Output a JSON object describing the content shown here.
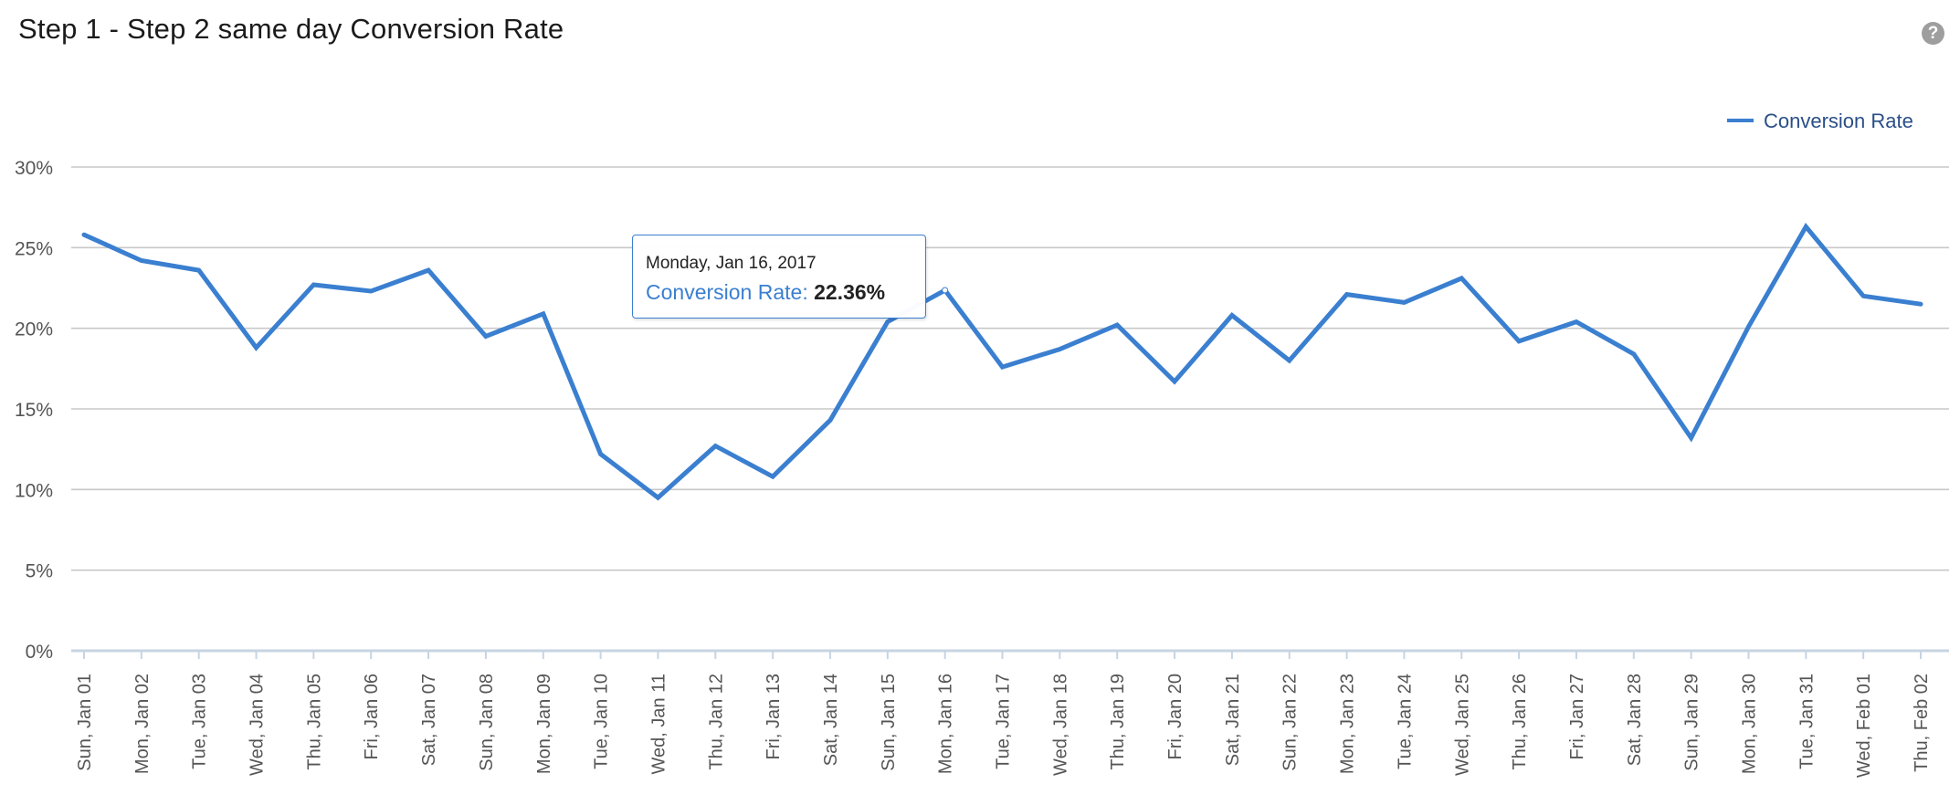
{
  "header": {
    "title": "Step 1 - Step 2 same day Conversion Rate",
    "help_icon": "?"
  },
  "colors": {
    "series": "#3a7fd0",
    "grid": "#c8c8c8",
    "axis_text": "#555555"
  },
  "tooltip": {
    "date": "Monday, Jan 16, 2017",
    "series": "Conversion Rate",
    "separator": ":",
    "value": "22.36%"
  },
  "chart_data": {
    "type": "line",
    "title": "Step 1 - Step 2 same day Conversion Rate",
    "xlabel": "",
    "ylabel": "",
    "ylim": [
      0,
      30
    ],
    "yticks": [
      "0%",
      "5%",
      "10%",
      "15%",
      "20%",
      "25%",
      "30%"
    ],
    "grid": true,
    "legend": "top-right",
    "categories": [
      "Sun, Jan 01",
      "Mon, Jan 02",
      "Tue, Jan 03",
      "Wed, Jan 04",
      "Thu, Jan 05",
      "Fri, Jan 06",
      "Sat, Jan 07",
      "Sun, Jan 08",
      "Mon, Jan 09",
      "Tue, Jan 10",
      "Wed, Jan 11",
      "Thu, Jan 12",
      "Fri, Jan 13",
      "Sat, Jan 14",
      "Sun, Jan 15",
      "Mon, Jan 16",
      "Tue, Jan 17",
      "Wed, Jan 18",
      "Thu, Jan 19",
      "Fri, Jan 20",
      "Sat, Jan 21",
      "Sun, Jan 22",
      "Mon, Jan 23",
      "Tue, Jan 24",
      "Wed, Jan 25",
      "Thu, Jan 26",
      "Fri, Jan 27",
      "Sat, Jan 28",
      "Sun, Jan 29",
      "Mon, Jan 30",
      "Tue, Jan 31",
      "Wed, Feb 01",
      "Thu, Feb 02"
    ],
    "series": [
      {
        "name": "Conversion Rate",
        "values": [
          25.8,
          24.2,
          23.6,
          18.8,
          22.7,
          22.3,
          23.6,
          19.5,
          20.9,
          12.2,
          9.5,
          12.7,
          10.8,
          14.3,
          20.4,
          22.36,
          17.6,
          18.7,
          20.2,
          16.7,
          20.8,
          18.0,
          22.1,
          21.6,
          23.1,
          19.2,
          20.4,
          18.4,
          13.2,
          20.1,
          26.3,
          22.0,
          21.5
        ]
      }
    ]
  }
}
